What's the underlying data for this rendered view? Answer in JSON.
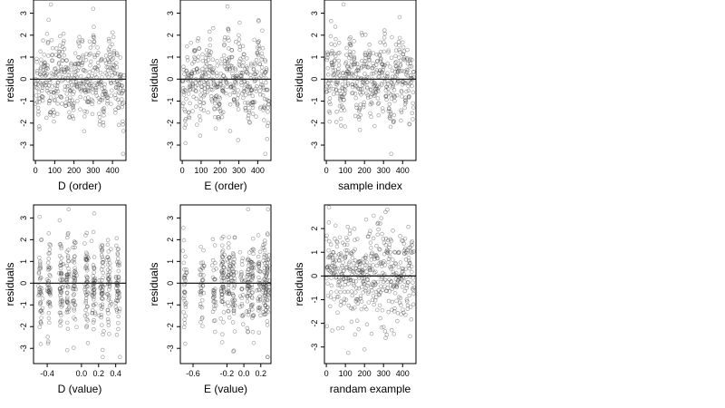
{
  "chart_data": [
    {
      "type": "scatter",
      "xlabel": "D (order)",
      "ylabel": "residuals",
      "xlim": [
        -10,
        470
      ],
      "ylim": [
        -3.7,
        3.6
      ],
      "xticks": [
        0,
        100,
        200,
        300,
        400
      ],
      "xtick_labels": [
        "0",
        "100",
        "200",
        "300",
        "400"
      ],
      "yticks": [
        -3,
        -2,
        -1,
        0,
        1,
        2,
        3
      ],
      "ytick_labels": [
        "-3",
        "-2",
        "-1",
        "0",
        "1",
        "2",
        "3"
      ],
      "hline": 0,
      "gen": "order",
      "seed": 11,
      "points": [
        [
          80,
          3.4
        ],
        [
          300,
          3.2
        ],
        [
          455,
          -3.4
        ]
      ]
    },
    {
      "type": "scatter",
      "xlabel": "E (order)",
      "ylabel": "residuals",
      "xlim": [
        -10,
        470
      ],
      "ylim": [
        -3.7,
        3.6
      ],
      "xticks": [
        0,
        100,
        200,
        300,
        400
      ],
      "xtick_labels": [
        "0",
        "100",
        "200",
        "300",
        "400"
      ],
      "yticks": [
        -3,
        -2,
        -1,
        0,
        1,
        2,
        3
      ],
      "ytick_labels": [
        "-3",
        "-2",
        "-1",
        "0",
        "1",
        "2",
        "3"
      ],
      "hline": 0,
      "gen": "order",
      "seed": 23,
      "points": [
        [
          240,
          3.3
        ],
        [
          440,
          -3.4
        ]
      ]
    },
    {
      "type": "scatter",
      "xlabel": "sample index",
      "ylabel": "residuals",
      "xlim": [
        -10,
        470
      ],
      "ylim": [
        -3.7,
        3.6
      ],
      "xticks": [
        0,
        100,
        200,
        300,
        400
      ],
      "xtick_labels": [
        "0",
        "100",
        "200",
        "300",
        "400"
      ],
      "yticks": [
        -3,
        -2,
        -1,
        0,
        1,
        2,
        3
      ],
      "ytick_labels": [
        "-3",
        "-2",
        "-1",
        "0",
        "1",
        "2",
        "3"
      ],
      "hline": 0,
      "gen": "order",
      "seed": 37,
      "points": [
        [
          90,
          3.4
        ],
        [
          340,
          -3.4
        ]
      ]
    },
    {
      "type": "scatter",
      "xlabel": "D (value)",
      "ylabel": "residuals",
      "xlim": [
        -0.56,
        0.52
      ],
      "ylim": [
        -3.7,
        3.6
      ],
      "xticks": [
        -0.4,
        0.0,
        0.2,
        0.4
      ],
      "xtick_labels": [
        "-0.4",
        "0.0",
        "0.2",
        "0.4"
      ],
      "yticks": [
        -3,
        -2,
        -1,
        0,
        1,
        2,
        3
      ],
      "ytick_labels": [
        "-3",
        "-2",
        "-1",
        "0",
        "1",
        "2",
        "3"
      ],
      "hline": 0,
      "gen": "value",
      "seed": 53,
      "clusters": [
        -0.48,
        -0.38,
        -0.24,
        -0.16,
        -0.08,
        0.06,
        0.14,
        0.24,
        0.32,
        0.42
      ],
      "points": [
        [
          -0.15,
          3.4
        ],
        [
          0.45,
          -3.4
        ]
      ]
    },
    {
      "type": "scatter",
      "xlabel": "E (value)",
      "ylabel": "residuals",
      "xlim": [
        -0.75,
        0.32
      ],
      "ylim": [
        -3.7,
        3.6
      ],
      "xticks": [
        -0.6,
        -0.2,
        0.0,
        0.2
      ],
      "xtick_labels": [
        "-0.6",
        "-0.2",
        "0.0",
        "0.2"
      ],
      "yticks": [
        -3,
        -2,
        -1,
        0,
        1,
        2,
        3
      ],
      "ytick_labels": [
        "-3",
        "-2",
        "-1",
        "0",
        "1",
        "2",
        "3"
      ],
      "hline": 0,
      "gen": "value",
      "seed": 71,
      "clusters": [
        -0.7,
        -0.5,
        -0.35,
        -0.25,
        -0.18,
        -0.12,
        -0.02,
        0.05,
        0.1,
        0.18,
        0.24,
        0.28
      ],
      "points": [
        [
          0.05,
          3.4
        ],
        [
          0.28,
          -3.4
        ]
      ]
    },
    {
      "type": "scatter",
      "xlabel": "randam example",
      "ylabel": "residuals",
      "xlim": [
        -10,
        470
      ],
      "ylim": [
        -3.7,
        3.0
      ],
      "xticks": [
        0,
        100,
        200,
        300,
        400
      ],
      "xtick_labels": [
        "0",
        "100",
        "200",
        "300",
        "400"
      ],
      "yticks": [
        -3,
        -2,
        -1,
        0,
        1,
        2
      ],
      "ytick_labels": [
        "-3",
        "-2",
        "-1",
        "0",
        "1",
        "2"
      ],
      "hline": 0,
      "gen": "random",
      "seed": 97,
      "points": [
        [
          200,
          -3.1
        ],
        [
          320,
          2.8
        ]
      ]
    }
  ]
}
